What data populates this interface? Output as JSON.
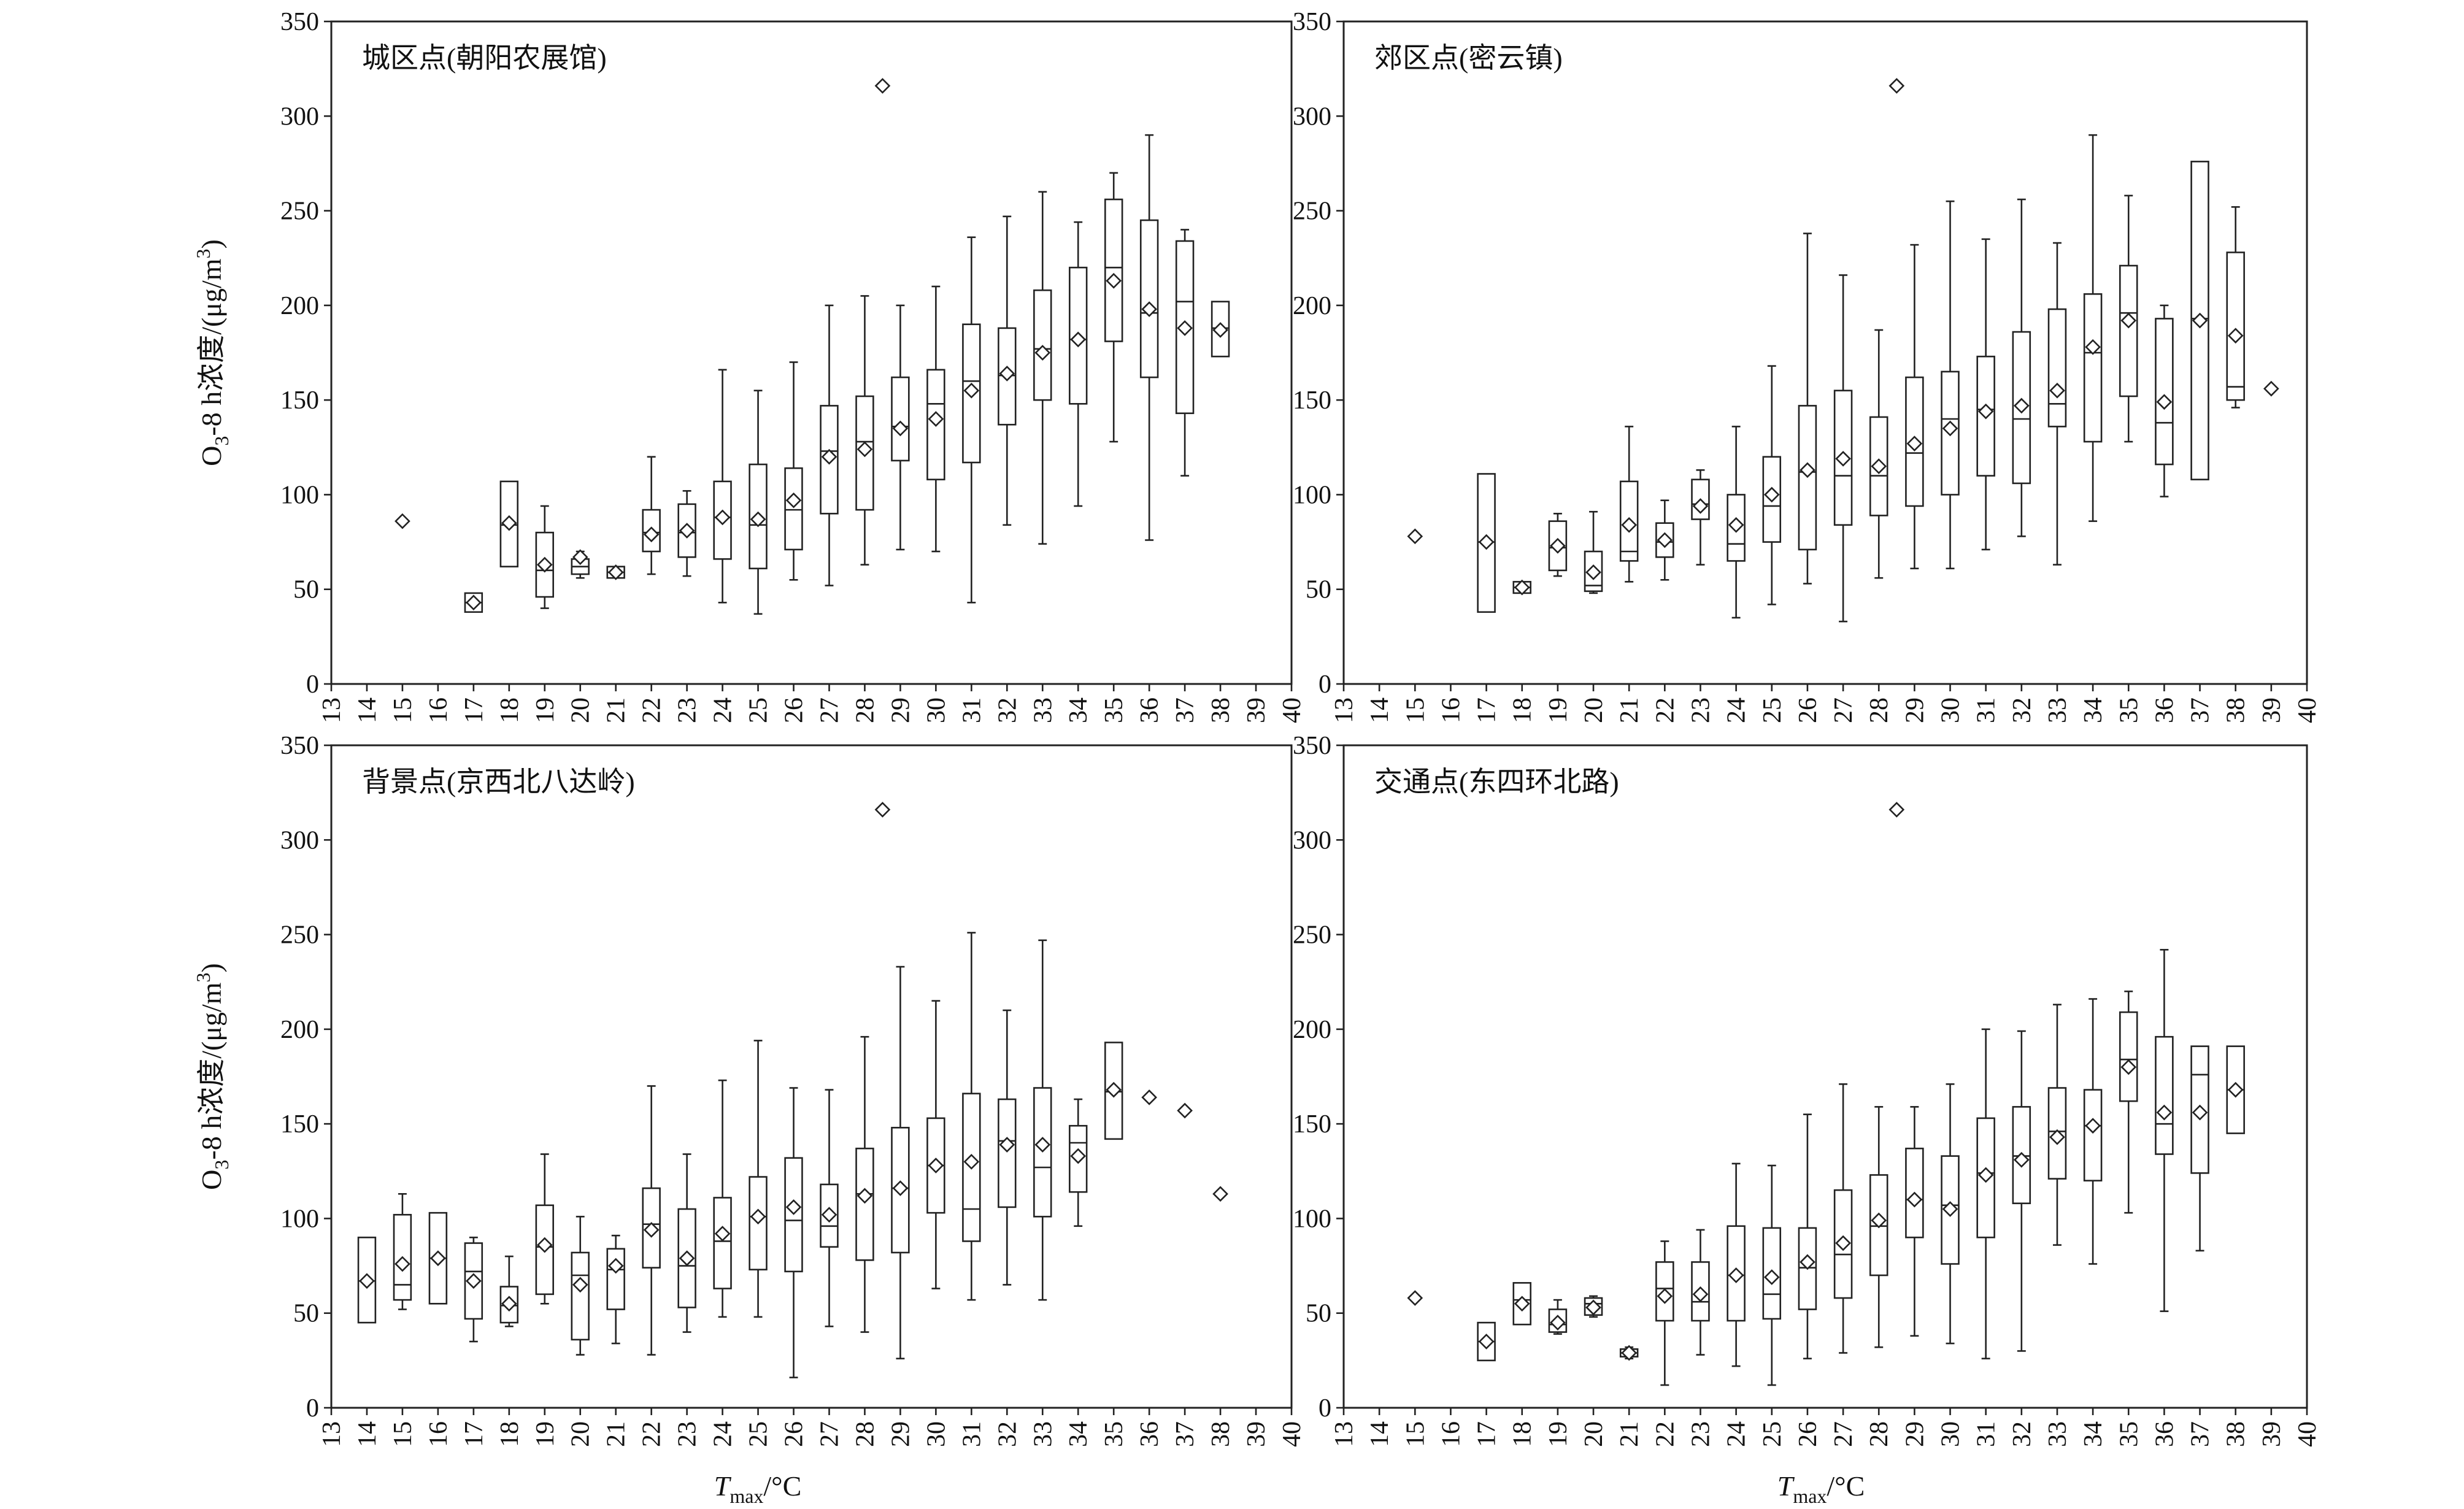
{
  "figure": {
    "ylabel": "O3-8 h浓度/(μg/m3)",
    "ylabel_parts": {
      "pre": "O",
      "sub": "3",
      "mid": "-8 h浓度/(μg/m",
      "sup": "3",
      "post": ")"
    },
    "xlabel_parts": {
      "main": "T",
      "sub": "max",
      "post": "/°C"
    },
    "ylim": [
      0,
      350
    ],
    "yticks": [
      0,
      50,
      100,
      150,
      200,
      250,
      300,
      350
    ],
    "xlim": [
      13,
      40
    ],
    "xticks": [
      13,
      14,
      15,
      16,
      17,
      18,
      19,
      20,
      21,
      22,
      23,
      24,
      25,
      26,
      27,
      28,
      29,
      30,
      31,
      32,
      33,
      34,
      35,
      36,
      37,
      38,
      39,
      40
    ]
  },
  "chart_data": [
    {
      "type": "box",
      "title": "城区点(朝阳农展馆)",
      "ylim": [
        0,
        350
      ],
      "xlim": [
        13,
        40
      ],
      "outliers": [
        {
          "x": 28.5,
          "y": 316
        }
      ],
      "boxes": [
        {
          "x": 15,
          "min": 86,
          "q1": 86,
          "median": 86,
          "q3": 86,
          "max": 86,
          "mean": 86
        },
        {
          "x": 17,
          "min": 38,
          "q1": 38,
          "median": 43,
          "q3": 48,
          "max": 48,
          "mean": 43
        },
        {
          "x": 18,
          "min": 62,
          "q1": 62,
          "median": 84,
          "q3": 107,
          "max": 107,
          "mean": 85
        },
        {
          "x": 19,
          "min": 40,
          "q1": 46,
          "median": 60,
          "q3": 80,
          "max": 94,
          "mean": 63
        },
        {
          "x": 20,
          "min": 56,
          "q1": 58,
          "median": 62,
          "q3": 66,
          "max": 70,
          "mean": 67
        },
        {
          "x": 21,
          "min": 56,
          "q1": 56,
          "median": 59,
          "q3": 62,
          "max": 62,
          "mean": 59
        },
        {
          "x": 22,
          "min": 58,
          "q1": 70,
          "median": 80,
          "q3": 92,
          "max": 120,
          "mean": 79
        },
        {
          "x": 23,
          "min": 57,
          "q1": 67,
          "median": 80,
          "q3": 95,
          "max": 102,
          "mean": 81
        },
        {
          "x": 24,
          "min": 43,
          "q1": 66,
          "median": 88,
          "q3": 107,
          "max": 166,
          "mean": 88
        },
        {
          "x": 25,
          "min": 37,
          "q1": 61,
          "median": 84,
          "q3": 116,
          "max": 155,
          "mean": 87
        },
        {
          "x": 26,
          "min": 55,
          "q1": 71,
          "median": 92,
          "q3": 114,
          "max": 170,
          "mean": 97
        },
        {
          "x": 27,
          "min": 52,
          "q1": 90,
          "median": 123,
          "q3": 147,
          "max": 200,
          "mean": 120
        },
        {
          "x": 28,
          "min": 63,
          "q1": 92,
          "median": 128,
          "q3": 152,
          "max": 205,
          "mean": 124
        },
        {
          "x": 29,
          "min": 71,
          "q1": 118,
          "median": 136,
          "q3": 162,
          "max": 200,
          "mean": 135
        },
        {
          "x": 30,
          "min": 70,
          "q1": 108,
          "median": 148,
          "q3": 166,
          "max": 210,
          "mean": 140
        },
        {
          "x": 31,
          "min": 43,
          "q1": 117,
          "median": 160,
          "q3": 190,
          "max": 236,
          "mean": 155
        },
        {
          "x": 32,
          "min": 84,
          "q1": 137,
          "median": 163,
          "q3": 188,
          "max": 247,
          "mean": 164
        },
        {
          "x": 33,
          "min": 74,
          "q1": 150,
          "median": 177,
          "q3": 208,
          "max": 260,
          "mean": 175
        },
        {
          "x": 34,
          "min": 94,
          "q1": 148,
          "median": 182,
          "q3": 220,
          "max": 244,
          "mean": 182
        },
        {
          "x": 35,
          "min": 128,
          "q1": 181,
          "median": 220,
          "q3": 256,
          "max": 270,
          "mean": 213
        },
        {
          "x": 36,
          "min": 76,
          "q1": 162,
          "median": 196,
          "q3": 245,
          "max": 290,
          "mean": 198
        },
        {
          "x": 37,
          "min": 110,
          "q1": 143,
          "median": 202,
          "q3": 234,
          "max": 240,
          "mean": 188
        },
        {
          "x": 38,
          "min": 173,
          "q1": 173,
          "median": 188,
          "q3": 202,
          "max": 202,
          "mean": 187
        }
      ]
    },
    {
      "type": "box",
      "title": "郊区点(密云镇)",
      "ylim": [
        0,
        350
      ],
      "xlim": [
        13,
        40
      ],
      "outliers": [
        {
          "x": 28.5,
          "y": 316
        }
      ],
      "boxes": [
        {
          "x": 15,
          "min": 78,
          "q1": 78,
          "median": 78,
          "q3": 78,
          "max": 78,
          "mean": 78
        },
        {
          "x": 17,
          "min": 38,
          "q1": 38,
          "median": 75,
          "q3": 111,
          "max": 111,
          "mean": 75
        },
        {
          "x": 18,
          "min": 48,
          "q1": 48,
          "median": 51,
          "q3": 54,
          "max": 54,
          "mean": 51
        },
        {
          "x": 19,
          "min": 57,
          "q1": 60,
          "median": 72,
          "q3": 86,
          "max": 90,
          "mean": 73
        },
        {
          "x": 20,
          "min": 48,
          "q1": 49,
          "median": 52,
          "q3": 70,
          "max": 91,
          "mean": 59
        },
        {
          "x": 21,
          "min": 54,
          "q1": 65,
          "median": 70,
          "q3": 107,
          "max": 136,
          "mean": 84
        },
        {
          "x": 22,
          "min": 55,
          "q1": 67,
          "median": 75,
          "q3": 85,
          "max": 97,
          "mean": 76
        },
        {
          "x": 23,
          "min": 63,
          "q1": 87,
          "median": 95,
          "q3": 108,
          "max": 113,
          "mean": 94
        },
        {
          "x": 24,
          "min": 35,
          "q1": 65,
          "median": 74,
          "q3": 100,
          "max": 136,
          "mean": 84
        },
        {
          "x": 25,
          "min": 42,
          "q1": 75,
          "median": 94,
          "q3": 120,
          "max": 168,
          "mean": 100
        },
        {
          "x": 26,
          "min": 53,
          "q1": 71,
          "median": 112,
          "q3": 147,
          "max": 238,
          "mean": 113
        },
        {
          "x": 27,
          "min": 33,
          "q1": 84,
          "median": 110,
          "q3": 155,
          "max": 216,
          "mean": 119
        },
        {
          "x": 28,
          "min": 56,
          "q1": 89,
          "median": 110,
          "q3": 141,
          "max": 187,
          "mean": 115
        },
        {
          "x": 29,
          "min": 61,
          "q1": 94,
          "median": 122,
          "q3": 162,
          "max": 232,
          "mean": 127
        },
        {
          "x": 30,
          "min": 61,
          "q1": 100,
          "median": 140,
          "q3": 165,
          "max": 255,
          "mean": 135
        },
        {
          "x": 31,
          "min": 71,
          "q1": 110,
          "median": 145,
          "q3": 173,
          "max": 235,
          "mean": 144
        },
        {
          "x": 32,
          "min": 78,
          "q1": 106,
          "median": 140,
          "q3": 186,
          "max": 256,
          "mean": 147
        },
        {
          "x": 33,
          "min": 63,
          "q1": 136,
          "median": 148,
          "q3": 198,
          "max": 233,
          "mean": 155
        },
        {
          "x": 34,
          "min": 86,
          "q1": 128,
          "median": 175,
          "q3": 206,
          "max": 290,
          "mean": 178
        },
        {
          "x": 35,
          "min": 128,
          "q1": 152,
          "median": 196,
          "q3": 221,
          "max": 258,
          "mean": 192
        },
        {
          "x": 36,
          "min": 99,
          "q1": 116,
          "median": 138,
          "q3": 193,
          "max": 200,
          "mean": 149
        },
        {
          "x": 37,
          "min": 108,
          "q1": 108,
          "median": 193,
          "q3": 276,
          "max": 276,
          "mean": 192
        },
        {
          "x": 38,
          "min": 146,
          "q1": 150,
          "median": 157,
          "q3": 228,
          "max": 252,
          "mean": 184
        },
        {
          "x": 39,
          "min": 156,
          "q1": 156,
          "median": 156,
          "q3": 156,
          "max": 156,
          "mean": 156
        }
      ]
    },
    {
      "type": "box",
      "title": "背景点(京西北八达岭)",
      "ylim": [
        0,
        350
      ],
      "xlim": [
        13,
        40
      ],
      "outliers": [
        {
          "x": 28.5,
          "y": 316
        }
      ],
      "boxes": [
        {
          "x": 14,
          "min": 45,
          "q1": 45,
          "median": 67,
          "q3": 90,
          "max": 90,
          "mean": 67
        },
        {
          "x": 15,
          "min": 52,
          "q1": 57,
          "median": 65,
          "q3": 102,
          "max": 113,
          "mean": 76
        },
        {
          "x": 16,
          "min": 55,
          "q1": 55,
          "median": 79,
          "q3": 103,
          "max": 103,
          "mean": 79
        },
        {
          "x": 17,
          "min": 35,
          "q1": 47,
          "median": 72,
          "q3": 87,
          "max": 90,
          "mean": 67
        },
        {
          "x": 18,
          "min": 43,
          "q1": 45,
          "median": 54,
          "q3": 64,
          "max": 80,
          "mean": 55
        },
        {
          "x": 19,
          "min": 55,
          "q1": 60,
          "median": 85,
          "q3": 107,
          "max": 134,
          "mean": 86
        },
        {
          "x": 20,
          "min": 28,
          "q1": 36,
          "median": 70,
          "q3": 82,
          "max": 101,
          "mean": 65
        },
        {
          "x": 21,
          "min": 34,
          "q1": 52,
          "median": 73,
          "q3": 84,
          "max": 91,
          "mean": 75
        },
        {
          "x": 22,
          "min": 28,
          "q1": 74,
          "median": 97,
          "q3": 116,
          "max": 170,
          "mean": 94
        },
        {
          "x": 23,
          "min": 40,
          "q1": 53,
          "median": 75,
          "q3": 105,
          "max": 134,
          "mean": 79
        },
        {
          "x": 24,
          "min": 48,
          "q1": 63,
          "median": 88,
          "q3": 111,
          "max": 173,
          "mean": 92
        },
        {
          "x": 25,
          "min": 48,
          "q1": 73,
          "median": 101,
          "q3": 122,
          "max": 194,
          "mean": 101
        },
        {
          "x": 26,
          "min": 16,
          "q1": 72,
          "median": 99,
          "q3": 132,
          "max": 169,
          "mean": 106
        },
        {
          "x": 27,
          "min": 43,
          "q1": 85,
          "median": 96,
          "q3": 118,
          "max": 168,
          "mean": 102
        },
        {
          "x": 28,
          "min": 40,
          "q1": 78,
          "median": 113,
          "q3": 137,
          "max": 196,
          "mean": 112
        },
        {
          "x": 29,
          "min": 26,
          "q1": 82,
          "median": 116,
          "q3": 148,
          "max": 233,
          "mean": 116
        },
        {
          "x": 30,
          "min": 63,
          "q1": 103,
          "median": 128,
          "q3": 153,
          "max": 215,
          "mean": 128
        },
        {
          "x": 31,
          "min": 57,
          "q1": 88,
          "median": 105,
          "q3": 166,
          "max": 251,
          "mean": 130
        },
        {
          "x": 32,
          "min": 65,
          "q1": 106,
          "median": 141,
          "q3": 163,
          "max": 210,
          "mean": 139
        },
        {
          "x": 33,
          "min": 57,
          "q1": 101,
          "median": 127,
          "q3": 169,
          "max": 247,
          "mean": 139
        },
        {
          "x": 34,
          "min": 96,
          "q1": 114,
          "median": 140,
          "q3": 149,
          "max": 163,
          "mean": 133
        },
        {
          "x": 35,
          "min": 142,
          "q1": 142,
          "median": 167,
          "q3": 193,
          "max": 193,
          "mean": 168
        },
        {
          "x": 36,
          "min": 164,
          "q1": 164,
          "median": 164,
          "q3": 164,
          "max": 164,
          "mean": 164
        },
        {
          "x": 37,
          "min": 157,
          "q1": 157,
          "median": 157,
          "q3": 157,
          "max": 157,
          "mean": 157
        },
        {
          "x": 38,
          "min": 113,
          "q1": 113,
          "median": 113,
          "q3": 113,
          "max": 113,
          "mean": 113
        }
      ]
    },
    {
      "type": "box",
      "title": "交通点(东四环北路)",
      "ylim": [
        0,
        350
      ],
      "xlim": [
        13,
        40
      ],
      "outliers": [
        {
          "x": 28.5,
          "y": 316
        }
      ],
      "boxes": [
        {
          "x": 15,
          "min": 58,
          "q1": 58,
          "median": 58,
          "q3": 58,
          "max": 58,
          "mean": 58
        },
        {
          "x": 17,
          "min": 25,
          "q1": 25,
          "median": 35,
          "q3": 45,
          "max": 45,
          "mean": 35
        },
        {
          "x": 18,
          "min": 44,
          "q1": 44,
          "median": 57,
          "q3": 66,
          "max": 66,
          "mean": 55
        },
        {
          "x": 19,
          "min": 39,
          "q1": 40,
          "median": 44,
          "q3": 52,
          "max": 57,
          "mean": 45
        },
        {
          "x": 20,
          "min": 48,
          "q1": 49,
          "median": 55,
          "q3": 58,
          "max": 59,
          "mean": 53
        },
        {
          "x": 21,
          "min": 26,
          "q1": 27,
          "median": 29,
          "q3": 31,
          "max": 32,
          "mean": 29
        },
        {
          "x": 22,
          "min": 12,
          "q1": 46,
          "median": 63,
          "q3": 77,
          "max": 88,
          "mean": 59
        },
        {
          "x": 23,
          "min": 28,
          "q1": 46,
          "median": 56,
          "q3": 77,
          "max": 94,
          "mean": 60
        },
        {
          "x": 24,
          "min": 22,
          "q1": 46,
          "median": 70,
          "q3": 96,
          "max": 129,
          "mean": 70
        },
        {
          "x": 25,
          "min": 12,
          "q1": 47,
          "median": 60,
          "q3": 95,
          "max": 128,
          "mean": 69
        },
        {
          "x": 26,
          "min": 26,
          "q1": 52,
          "median": 74,
          "q3": 95,
          "max": 155,
          "mean": 77
        },
        {
          "x": 27,
          "min": 29,
          "q1": 58,
          "median": 81,
          "q3": 115,
          "max": 171,
          "mean": 87
        },
        {
          "x": 28,
          "min": 32,
          "q1": 70,
          "median": 96,
          "q3": 123,
          "max": 159,
          "mean": 99
        },
        {
          "x": 29,
          "min": 38,
          "q1": 90,
          "median": 110,
          "q3": 137,
          "max": 159,
          "mean": 110
        },
        {
          "x": 30,
          "min": 34,
          "q1": 76,
          "median": 107,
          "q3": 133,
          "max": 171,
          "mean": 105
        },
        {
          "x": 31,
          "min": 26,
          "q1": 90,
          "median": 124,
          "q3": 153,
          "max": 200,
          "mean": 123
        },
        {
          "x": 32,
          "min": 30,
          "q1": 108,
          "median": 133,
          "q3": 159,
          "max": 199,
          "mean": 131
        },
        {
          "x": 33,
          "min": 86,
          "q1": 121,
          "median": 146,
          "q3": 169,
          "max": 213,
          "mean": 143
        },
        {
          "x": 34,
          "min": 76,
          "q1": 120,
          "median": 149,
          "q3": 168,
          "max": 216,
          "mean": 149
        },
        {
          "x": 35,
          "min": 103,
          "q1": 162,
          "median": 184,
          "q3": 209,
          "max": 220,
          "mean": 180
        },
        {
          "x": 36,
          "min": 51,
          "q1": 134,
          "median": 150,
          "q3": 196,
          "max": 242,
          "mean": 156
        },
        {
          "x": 37,
          "min": 83,
          "q1": 124,
          "median": 176,
          "q3": 191,
          "max": 191,
          "mean": 156
        },
        {
          "x": 38,
          "min": 145,
          "q1": 145,
          "median": 168,
          "q3": 191,
          "max": 191,
          "mean": 168
        }
      ]
    }
  ]
}
